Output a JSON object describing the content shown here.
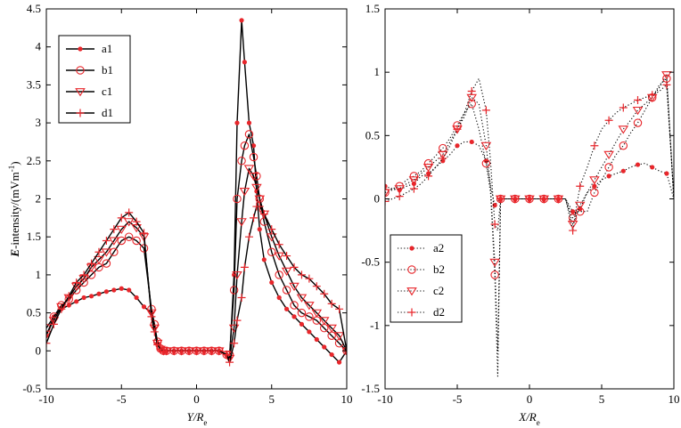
{
  "colors": {
    "marker": "#e8262b",
    "line": "#000000"
  },
  "chart_data": [
    {
      "type": "line",
      "panel": "left",
      "ylabel_main": "E",
      "ylabel_rest": "-intensity/(mVm",
      "ylabel_sup": "-1",
      "ylabel_close": ")",
      "xlabel_main": "Y",
      "xlabel_mid": "/R",
      "xlabel_sub": "e",
      "xlim": [
        -10,
        10
      ],
      "ylim": [
        -0.5,
        4.5
      ],
      "xticks": [
        -10,
        -5,
        0,
        5,
        10
      ],
      "xtick_labels": [
        "-10",
        "-5",
        "0",
        "5",
        "10"
      ],
      "yticks": [
        -0.5,
        0,
        0.5,
        1,
        1.5,
        2,
        2.5,
        3,
        3.5,
        4,
        4.5
      ],
      "ytick_labels": [
        "-0.5",
        "0",
        "0.5",
        "1",
        "1.5",
        "2",
        "2.5",
        "3",
        "3.5",
        "4",
        "4.5"
      ],
      "legend": [
        "a1",
        "b1",
        "c1",
        "d1"
      ],
      "series": [
        {
          "name": "a1",
          "marker": "dot",
          "marker_every": 1,
          "x": [
            -10,
            -9.5,
            -9,
            -8.5,
            -8,
            -7.5,
            -7,
            -6.5,
            -6,
            -5.5,
            -5,
            -4.5,
            -4,
            -3.5,
            -3,
            -2.8,
            -2.6,
            -2.4,
            -2.2,
            -2,
            -1.5,
            -1,
            -0.5,
            0,
            0.5,
            1,
            1.5,
            2,
            2.2,
            2.5,
            2.7,
            3,
            3.2,
            3.5,
            3.8,
            4,
            4.2,
            4.5,
            5,
            5.5,
            6,
            6.5,
            7,
            7.5,
            8,
            8.5,
            9,
            9.5,
            10
          ],
          "y": [
            0.2,
            0.45,
            0.55,
            0.6,
            0.65,
            0.7,
            0.72,
            0.75,
            0.78,
            0.8,
            0.82,
            0.8,
            0.7,
            0.58,
            0.5,
            0.3,
            0.1,
            0.02,
            0,
            0,
            0,
            0,
            0,
            0,
            0,
            0,
            0,
            -0.05,
            -0.1,
            1.0,
            3.0,
            4.35,
            3.8,
            3.0,
            2.7,
            2.1,
            1.6,
            1.2,
            0.9,
            0.7,
            0.55,
            0.45,
            0.35,
            0.25,
            0.15,
            0.05,
            -0.05,
            -0.15,
            0
          ]
        },
        {
          "name": "b1",
          "marker": "circle",
          "marker_every": 1,
          "x": [
            -10,
            -9.5,
            -9,
            -8.5,
            -8,
            -7.5,
            -7,
            -6.5,
            -6,
            -5.5,
            -5,
            -4.5,
            -4,
            -3.5,
            -3,
            -2.8,
            -2.6,
            -2.4,
            -2.2,
            -2,
            -1.5,
            -1,
            -0.5,
            0,
            0.5,
            1,
            1.5,
            2,
            2.2,
            2.5,
            2.7,
            3,
            3.2,
            3.5,
            3.8,
            4,
            4.2,
            4.5,
            5,
            5.5,
            6,
            6.5,
            7,
            7.5,
            8,
            8.5,
            9,
            9.5,
            10
          ],
          "y": [
            0.3,
            0.45,
            0.6,
            0.68,
            0.8,
            0.9,
            1.0,
            1.1,
            1.15,
            1.3,
            1.45,
            1.5,
            1.45,
            1.35,
            0.55,
            0.35,
            0.12,
            0.03,
            0,
            0,
            0,
            0,
            0,
            0,
            0,
            0,
            0,
            -0.05,
            -0.05,
            0.8,
            2.0,
            2.5,
            2.7,
            2.85,
            2.55,
            2.3,
            2.0,
            1.7,
            1.3,
            1.0,
            0.8,
            0.6,
            0.5,
            0.45,
            0.4,
            0.3,
            0.2,
            0.1,
            0
          ]
        },
        {
          "name": "c1",
          "marker": "triangle",
          "marker_every": 1,
          "x": [
            -10,
            -9.5,
            -9,
            -8.5,
            -8,
            -7.5,
            -7,
            -6.5,
            -6,
            -5.5,
            -5,
            -4.5,
            -4,
            -3.5,
            -3,
            -2.8,
            -2.6,
            -2.4,
            -2.2,
            -2,
            -1.5,
            -1,
            -0.5,
            0,
            0.5,
            1,
            1.5,
            2,
            2.2,
            2.5,
            2.7,
            3,
            3.2,
            3.5,
            3.8,
            4,
            4.2,
            4.5,
            5,
            5.5,
            6,
            6.5,
            7,
            7.5,
            8,
            8.5,
            9,
            9.5,
            10
          ],
          "y": [
            0.22,
            0.4,
            0.58,
            0.7,
            0.85,
            0.95,
            1.1,
            1.2,
            1.3,
            1.45,
            1.6,
            1.7,
            1.62,
            1.5,
            0.5,
            0.3,
            0.1,
            0.02,
            0,
            0,
            0,
            0,
            0,
            0,
            0,
            0,
            0,
            -0.05,
            -0.1,
            0.3,
            1.0,
            1.7,
            2.1,
            2.4,
            2.3,
            2.15,
            2.0,
            1.8,
            1.5,
            1.25,
            1.05,
            0.85,
            0.7,
            0.6,
            0.5,
            0.4,
            0.3,
            0.2,
            0
          ]
        },
        {
          "name": "d1",
          "marker": "plus",
          "marker_every": 1,
          "x": [
            -10,
            -9.5,
            -9,
            -8.5,
            -8,
            -7.5,
            -7,
            -6.5,
            -6,
            -5.5,
            -5,
            -4.5,
            -4,
            -3.5,
            -3,
            -2.8,
            -2.6,
            -2.4,
            -2.2,
            -2,
            -1.5,
            -1,
            -0.5,
            0,
            0.5,
            1,
            1.5,
            2,
            2.2,
            2.5,
            2.7,
            3,
            3.2,
            3.5,
            3.8,
            4,
            4.2,
            4.5,
            5,
            5.5,
            6,
            6.5,
            7,
            7.5,
            8,
            8.5,
            9,
            9.5,
            10
          ],
          "y": [
            0.1,
            0.35,
            0.55,
            0.72,
            0.9,
            1.0,
            1.15,
            1.3,
            1.45,
            1.6,
            1.75,
            1.82,
            1.7,
            1.55,
            0.45,
            0.25,
            0.08,
            0.02,
            0,
            0,
            0,
            0,
            0,
            0,
            0,
            0,
            0,
            -0.05,
            -0.15,
            0.1,
            0.4,
            0.7,
            1.1,
            1.5,
            1.75,
            1.9,
            1.9,
            1.8,
            1.6,
            1.4,
            1.25,
            1.1,
            1.0,
            0.95,
            0.85,
            0.75,
            0.62,
            0.55,
            0
          ]
        }
      ]
    },
    {
      "type": "line",
      "panel": "right",
      "xlabel_main": "X",
      "xlabel_mid": "/R",
      "xlabel_sub": "e",
      "xlim": [
        -10,
        10
      ],
      "ylim": [
        -1.5,
        1.5
      ],
      "xticks": [
        -10,
        -5,
        0,
        5,
        10
      ],
      "xtick_labels": [
        "-10",
        "-5",
        "0",
        "5",
        "10"
      ],
      "yticks": [
        -1.5,
        -1,
        -0.5,
        0,
        0.5,
        1,
        1.5
      ],
      "ytick_labels": [
        "-1.5",
        "-1",
        "-0.5",
        "0",
        "0.5",
        "1",
        "1.5"
      ],
      "legend": [
        "a2",
        "b2",
        "c2",
        "d2"
      ],
      "series": [
        {
          "name": "a2",
          "marker": "dot",
          "marker_every": 2,
          "x": [
            -10,
            -9.5,
            -9,
            -8.5,
            -8,
            -7.5,
            -7,
            -6.5,
            -6,
            -5.5,
            -5,
            -4.5,
            -4,
            -3.5,
            -3,
            -2.7,
            -2.4,
            -2.2,
            -2,
            -1.5,
            -1,
            -0.5,
            0,
            0.5,
            1,
            1.5,
            2,
            2.5,
            3,
            3.2,
            3.5,
            4,
            4.5,
            5,
            5.5,
            6,
            6.5,
            7,
            7.5,
            8,
            8.5,
            9,
            9.5,
            10
          ],
          "y": [
            0.1,
            0.08,
            0.07,
            0.1,
            0.12,
            0.18,
            0.2,
            0.25,
            0.3,
            0.35,
            0.42,
            0.45,
            0.45,
            0.42,
            0.3,
            0.1,
            -0.05,
            -0.02,
            0,
            0,
            0,
            0,
            0,
            0,
            0,
            0,
            0,
            0,
            -0.1,
            -0.12,
            -0.08,
            0.05,
            0.1,
            0.15,
            0.18,
            0.2,
            0.22,
            0.25,
            0.27,
            0.28,
            0.25,
            0.22,
            0.2,
            0
          ]
        },
        {
          "name": "b2",
          "marker": "circle",
          "marker_every": 2,
          "x": [
            -10,
            -9.5,
            -9,
            -8.5,
            -8,
            -7.5,
            -7,
            -6.5,
            -6,
            -5.5,
            -5,
            -4.5,
            -4,
            -3.5,
            -3,
            -2.7,
            -2.4,
            -2.2,
            -2,
            -1.5,
            -1,
            -0.5,
            0,
            0.5,
            1,
            1.5,
            2,
            2.5,
            3,
            3.2,
            3.5,
            4,
            4.5,
            5,
            5.5,
            6,
            6.5,
            7,
            7.5,
            8,
            8.5,
            9,
            9.5,
            10
          ],
          "y": [
            0.05,
            0.08,
            0.1,
            0.15,
            0.18,
            0.22,
            0.28,
            0.34,
            0.4,
            0.48,
            0.58,
            0.68,
            0.75,
            0.55,
            0.28,
            0.05,
            -0.6,
            -1.4,
            0,
            0,
            0,
            0,
            0,
            0,
            0,
            0,
            0,
            0,
            -0.15,
            -0.1,
            -0.1,
            -0.1,
            0.05,
            0.15,
            0.25,
            0.35,
            0.42,
            0.52,
            0.6,
            0.7,
            0.8,
            0.9,
            0.95,
            0
          ]
        },
        {
          "name": "c2",
          "marker": "triangle",
          "marker_every": 2,
          "x": [
            -10,
            -9.5,
            -9,
            -8.5,
            -8,
            -7.5,
            -7,
            -6.5,
            -6,
            -5.5,
            -5,
            -4.5,
            -4,
            -3.5,
            -3,
            -2.7,
            -2.4,
            -2.2,
            -2,
            -1.5,
            -1,
            -0.5,
            0,
            0.5,
            1,
            1.5,
            2,
            2.5,
            3,
            3.2,
            3.5,
            4,
            4.5,
            5,
            5.5,
            6,
            6.5,
            7,
            7.5,
            8,
            8.5,
            9,
            9.5,
            10
          ],
          "y": [
            0.05,
            0.07,
            0.08,
            0.12,
            0.15,
            0.2,
            0.25,
            0.3,
            0.35,
            0.45,
            0.55,
            0.65,
            0.8,
            0.75,
            0.42,
            0.1,
            -0.5,
            -1.2,
            0,
            0,
            0,
            0,
            0,
            0,
            0,
            0,
            0,
            0,
            -0.2,
            -0.15,
            -0.05,
            0.05,
            0.15,
            0.25,
            0.35,
            0.45,
            0.55,
            0.62,
            0.7,
            0.75,
            0.8,
            0.88,
            0.98,
            0
          ]
        },
        {
          "name": "d2",
          "marker": "plus",
          "marker_every": 2,
          "x": [
            -10,
            -9.5,
            -9,
            -8.5,
            -8,
            -7.5,
            -7,
            -6.5,
            -6,
            -5.5,
            -5,
            -4.5,
            -4,
            -3.5,
            -3,
            -2.7,
            -2.4,
            -2.2,
            -2,
            -1.5,
            -1,
            -0.5,
            0,
            0.5,
            1,
            1.5,
            2,
            2.5,
            3,
            3.2,
            3.5,
            4,
            4.5,
            5,
            5.5,
            6,
            6.5,
            7,
            7.5,
            8,
            8.5,
            9,
            9.5,
            10
          ],
          "y": [
            -0.02,
            0,
            0.02,
            0.05,
            0.08,
            0.12,
            0.18,
            0.25,
            0.32,
            0.42,
            0.55,
            0.68,
            0.85,
            0.95,
            0.7,
            0.3,
            -0.2,
            -0.25,
            0,
            0,
            0,
            0,
            0,
            0,
            0,
            0,
            0,
            0,
            -0.25,
            -0.1,
            0.1,
            0.25,
            0.42,
            0.55,
            0.62,
            0.68,
            0.72,
            0.75,
            0.78,
            0.8,
            0.82,
            0.85,
            0.9,
            0
          ]
        }
      ]
    }
  ]
}
